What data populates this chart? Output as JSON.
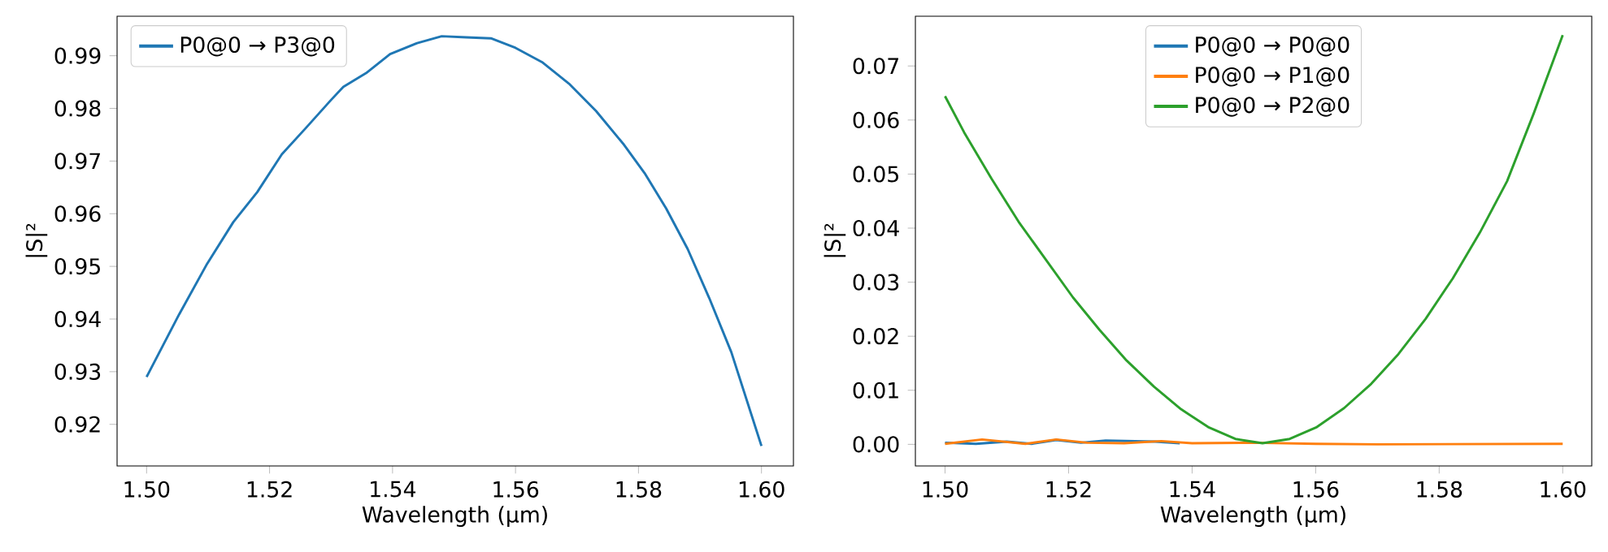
{
  "chart_data": [
    {
      "type": "line",
      "xlabel": "Wavelength (µm)",
      "ylabel": "|S|²",
      "legend": "top left",
      "line_style": "solid",
      "xlim": [
        1.4952,
        1.6052
      ],
      "ylim": [
        0.9121,
        0.9975
      ],
      "xticks": [
        {
          "value": 1.5,
          "label": "1.50"
        },
        {
          "value": 1.52,
          "label": "1.52"
        },
        {
          "value": 1.54,
          "label": "1.54"
        },
        {
          "value": 1.56,
          "label": "1.56"
        },
        {
          "value": 1.58,
          "label": "1.58"
        },
        {
          "value": 1.6,
          "label": "1.60"
        }
      ],
      "yticks": [
        {
          "value": 0.92,
          "label": "0.92"
        },
        {
          "value": 0.93,
          "label": "0.93"
        },
        {
          "value": 0.94,
          "label": "0.94"
        },
        {
          "value": 0.95,
          "label": "0.95"
        },
        {
          "value": 0.96,
          "label": "0.96"
        },
        {
          "value": 0.97,
          "label": "0.97"
        },
        {
          "value": 0.98,
          "label": "0.98"
        },
        {
          "value": 0.99,
          "label": "0.99"
        }
      ],
      "series": [
        {
          "name": "P0@0 → P3@0",
          "color": "#1f77b4",
          "x": [
            1.5,
            1.5053,
            1.5097,
            1.5141,
            1.518,
            1.522,
            1.526,
            1.53,
            1.532,
            1.5357,
            1.5396,
            1.544,
            1.548,
            1.552,
            1.556,
            1.56,
            1.5643,
            1.5687,
            1.5731,
            1.5775,
            1.581,
            1.5845,
            1.588,
            1.5915,
            1.5951,
            1.6
          ],
          "values": [
            0.929,
            0.9409,
            0.9502,
            0.9584,
            0.9641,
            0.9713,
            0.9764,
            0.9816,
            0.9841,
            0.9867,
            0.9903,
            0.9924,
            0.9937,
            0.9935,
            0.9933,
            0.9915,
            0.9888,
            0.9847,
            0.9795,
            0.9733,
            0.9677,
            0.961,
            0.9533,
            0.944,
            0.9337,
            0.9159
          ]
        }
      ]
    },
    {
      "type": "line",
      "xlabel": "Wavelength (µm)",
      "ylabel": "|S|²",
      "legend": "top",
      "line_style": "solid",
      "xlim": [
        1.4952,
        1.6047
      ],
      "ylim": [
        -0.004,
        0.0792
      ],
      "xticks": [
        {
          "value": 1.5,
          "label": "1.50"
        },
        {
          "value": 1.52,
          "label": "1.52"
        },
        {
          "value": 1.54,
          "label": "1.54"
        },
        {
          "value": 1.56,
          "label": "1.56"
        },
        {
          "value": 1.58,
          "label": "1.58"
        },
        {
          "value": 1.6,
          "label": "1.60"
        }
      ],
      "yticks": [
        {
          "value": 0,
          "label": "0.00"
        },
        {
          "value": 0.01,
          "label": "0.01"
        },
        {
          "value": 0.02,
          "label": "0.02"
        },
        {
          "value": 0.03,
          "label": "0.03"
        },
        {
          "value": 0.04,
          "label": "0.04"
        },
        {
          "value": 0.05,
          "label": "0.05"
        },
        {
          "value": 0.06,
          "label": "0.06"
        },
        {
          "value": 0.07,
          "label": "0.07"
        }
      ],
      "series": [
        {
          "name": "P0@0 → P0@0",
          "color": "#1f77b4",
          "x": [
            1.5,
            1.505,
            1.51,
            1.514,
            1.518,
            1.522,
            1.526,
            1.534,
            1.538
          ],
          "values": [
            0.0003,
            0.0001,
            0.0005,
            0.0001,
            0.0008,
            0.0003,
            0.0007,
            0.0005,
            0.0002
          ]
        },
        {
          "name": "P0@0 → P1@0",
          "color": "#ff7f0e",
          "x": [
            1.5,
            1.506,
            1.513,
            1.518,
            1.523,
            1.529,
            1.535,
            1.54,
            1.55,
            1.56,
            1.57,
            1.6
          ],
          "values": [
            0.0001,
            0.0009,
            0.0001,
            0.0009,
            0.0003,
            0.0002,
            0.0006,
            0.0002,
            0.0003,
            0.0001,
            0.0,
            0.0001
          ]
        },
        {
          "name": "P0@0 → P2@0",
          "color": "#2ca02c",
          "x": [
            1.5,
            1.5031,
            1.5075,
            1.5119,
            1.5163,
            1.5207,
            1.525,
            1.5294,
            1.5338,
            1.5382,
            1.5426,
            1.547,
            1.5514,
            1.5558,
            1.5602,
            1.5646,
            1.569,
            1.5734,
            1.5778,
            1.5822,
            1.5866,
            1.591,
            1.5953,
            1.6
          ],
          "values": [
            0.0644,
            0.0577,
            0.0492,
            0.0412,
            0.0342,
            0.0272,
            0.0212,
            0.0155,
            0.0107,
            0.0065,
            0.0032,
            0.001,
            0.0002,
            0.001,
            0.0032,
            0.0067,
            0.0112,
            0.0167,
            0.0232,
            0.0307,
            0.0392,
            0.0487,
            0.0612,
            0.0757
          ]
        }
      ]
    }
  ]
}
